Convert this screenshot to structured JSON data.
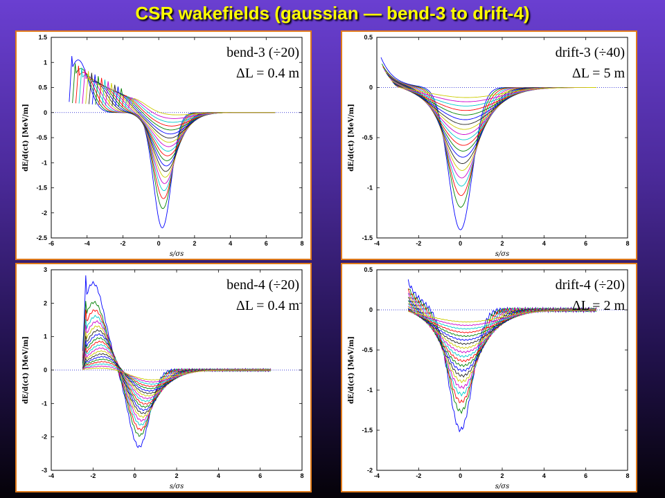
{
  "title": "CSR wakefields (gaussian — bend-3 to drift-4)",
  "chart_data": [
    {
      "id": "bend3",
      "type": "line",
      "annotation1": "bend-3 (÷20)",
      "annotation2": "ΔL = 0.4 m",
      "xlabel": "s/σs",
      "ylabel": "dE/d(ct) [MeV/m]",
      "xlim": [
        -6,
        8
      ],
      "ylim": [
        -2.5,
        1.5
      ],
      "xticks": [
        "-6",
        "-4",
        "-2",
        "0",
        "2",
        "4",
        "6",
        "8"
      ],
      "xtick_values": [
        -6,
        -4,
        -2,
        0,
        2,
        4,
        6,
        8
      ],
      "yticks": [
        "-2.5",
        "-2",
        "-1.5",
        "-1",
        "-0.5",
        "0",
        "0.5",
        "1",
        "1.5"
      ],
      "ytick_values": [
        -2.5,
        -2,
        -1.5,
        -1,
        -0.5,
        0,
        0.5,
        1,
        1.5
      ],
      "series_count": 20,
      "peak_pos": [
        1.05,
        0.3
      ],
      "peak_pos_x": [
        -4.5,
        -1.6
      ],
      "trough": [
        -2.3,
        -0.05
      ],
      "start_x": [
        -5,
        -1.5
      ],
      "style": "bend"
    },
    {
      "id": "drift3",
      "type": "line",
      "annotation1": "drift-3 (÷40)",
      "annotation2": "ΔL = 5 m",
      "xlabel": "s/σs",
      "ylabel": "dE/d(ct) [MeV/m]",
      "xlim": [
        -4,
        8
      ],
      "ylim": [
        -1.5,
        0.5
      ],
      "xticks": [
        "-4",
        "-2",
        "0",
        "2",
        "4",
        "6",
        "8"
      ],
      "xtick_values": [
        -4,
        -2,
        0,
        2,
        4,
        6,
        8
      ],
      "yticks": [
        "-1.5",
        "-1",
        "-0.5",
        "0",
        "0.5"
      ],
      "ytick_values": [
        -1.5,
        -1,
        -0.5,
        0,
        0.5
      ],
      "series_count": 20,
      "peak_pos": [
        0.3,
        0.02
      ],
      "trough": [
        -1.42,
        -0.1
      ],
      "start_x": [
        -3.8,
        -3.0
      ],
      "style": "drift"
    },
    {
      "id": "bend4",
      "type": "line",
      "annotation1": "bend-4 (÷20)",
      "annotation2": "ΔL = 0.4 m",
      "xlabel": "s/σs",
      "ylabel": "dE/d(ct) [MeV/m]",
      "xlim": [
        -4,
        8
      ],
      "ylim": [
        -3,
        3
      ],
      "xticks": [
        "-4",
        "-2",
        "0",
        "2",
        "4",
        "6",
        "8"
      ],
      "xtick_values": [
        -4,
        -2,
        0,
        2,
        4,
        6,
        8
      ],
      "yticks": [
        "-3",
        "-2",
        "-1",
        "0",
        "1",
        "2",
        "3"
      ],
      "ytick_values": [
        -3,
        -2,
        -1,
        0,
        1,
        2,
        3
      ],
      "series_count": 20,
      "peak_pos": [
        2.6,
        0.1
      ],
      "peak_pos_x": [
        -2.0,
        -1.2
      ],
      "trough": [
        -2.3,
        -0.3
      ],
      "start_x": [
        -2.5,
        -2.5
      ],
      "style": "bend"
    },
    {
      "id": "drift4",
      "type": "line",
      "annotation1": "drift-4 (÷20)",
      "annotation2": "ΔL = 2 m",
      "xlabel": "s/σs",
      "ylabel": "dE/d(ct) [MeV/m]",
      "xlim": [
        -4,
        8
      ],
      "ylim": [
        -2,
        0.5
      ],
      "xticks": [
        "-4",
        "-2",
        "0",
        "2",
        "4",
        "6",
        "8"
      ],
      "xtick_values": [
        -4,
        -2,
        0,
        2,
        4,
        6,
        8
      ],
      "yticks": [
        "-2",
        "-1.5",
        "-1",
        "-0.5",
        "0",
        "0.5"
      ],
      "ytick_values": [
        -2,
        -1.5,
        -1,
        -0.5,
        0,
        0.5
      ],
      "series_count": 20,
      "peak_pos": [
        0.35,
        0.02
      ],
      "trough": [
        -1.5,
        -0.15
      ],
      "start_x": [
        -2.5,
        -2.5
      ],
      "style": "drift"
    }
  ],
  "series_colors": [
    "#0000ff",
    "#008000",
    "#ff0000",
    "#00cccc",
    "#cc00cc",
    "#cccc00",
    "#222222"
  ]
}
